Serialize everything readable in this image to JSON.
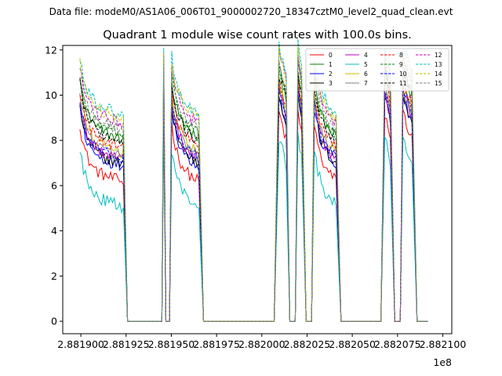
{
  "suptitle": "Data file: modeM0/AS1A06_006T01_9000002720_18347cztM0_level2_quad_clean.evt",
  "chart_data": {
    "type": "line",
    "title": "Quadrant 1 module wise count rates with 100.0s bins.",
    "xlabel": "",
    "ylabel": "",
    "x_offset_label": "1e8",
    "x_scale": 100000000,
    "x_range": [
      2.88189,
      2.882105
    ],
    "xlim": [
      288188930,
      288210380
    ],
    "ylim": [
      -0.55,
      12.2
    ],
    "x_ticks": [
      2.8819,
      2.881925,
      2.88195,
      2.881975,
      2.882,
      2.882025,
      2.88205,
      2.882075,
      2.8821
    ],
    "x_tick_labels": [
      "2.881900",
      "2.881925",
      "2.881950",
      "2.881975",
      "2.882000",
      "2.882025",
      "2.882050",
      "2.882075",
      "2.882100"
    ],
    "y_ticks": [
      0,
      2,
      4,
      6,
      8,
      10,
      12
    ],
    "y_tick_labels": [
      "0",
      "2",
      "4",
      "6",
      "8",
      "10",
      "12"
    ],
    "grid": false,
    "legend_position": "top-right",
    "legend_columns": 4,
    "bin_seconds": 100,
    "series_style": {
      "names": [
        "0",
        "1",
        "2",
        "3",
        "4",
        "5",
        "6",
        "7",
        "8",
        "9",
        "10",
        "11",
        "12",
        "13",
        "14",
        "15"
      ],
      "colors": [
        "#ff0000",
        "#008000",
        "#0000ff",
        "#000000",
        "#bf00bf",
        "#00bfbf",
        "#bfbf00",
        "#808080",
        "#ff0000",
        "#008000",
        "#0000ff",
        "#000000",
        "#bf00bf",
        "#00bfbf",
        "#bfbf00",
        "#808080"
      ],
      "dashed": [
        false,
        false,
        false,
        false,
        false,
        false,
        false,
        false,
        true,
        true,
        true,
        true,
        true,
        true,
        true,
        true
      ]
    },
    "series_base_levels": [
      6.3,
      8.2,
      7.0,
      7.1,
      7.3,
      5.2,
      7.6,
      7.4,
      7.8,
      8.4,
      7.3,
      8.1,
      8.9,
      9.3,
      9.1,
      8.6
    ],
    "on_segments_t": [
      [
        288189950,
        288192370
      ],
      [
        288194580,
        288194600
      ],
      [
        288195020,
        288196560
      ],
      [
        288200950,
        288201360
      ],
      [
        288202000,
        288202270
      ],
      [
        288202900,
        288204150
      ],
      [
        288206800,
        288207150
      ],
      [
        288207800,
        288208330
      ]
    ],
    "off_segments_t": [
      [
        288192580,
        288194500
      ],
      [
        288194700,
        288194900
      ],
      [
        288196780,
        288200750
      ],
      [
        288201550,
        288201880
      ],
      [
        288202450,
        288202780
      ],
      [
        288204380,
        288206600
      ],
      [
        288207350,
        288207650
      ],
      [
        288208580,
        288209200
      ]
    ],
    "trend_note": "rates near base level, rising at start of each on-segment and decaying; short on-segments rise to about 10-11.5; off-segments are 0"
  }
}
